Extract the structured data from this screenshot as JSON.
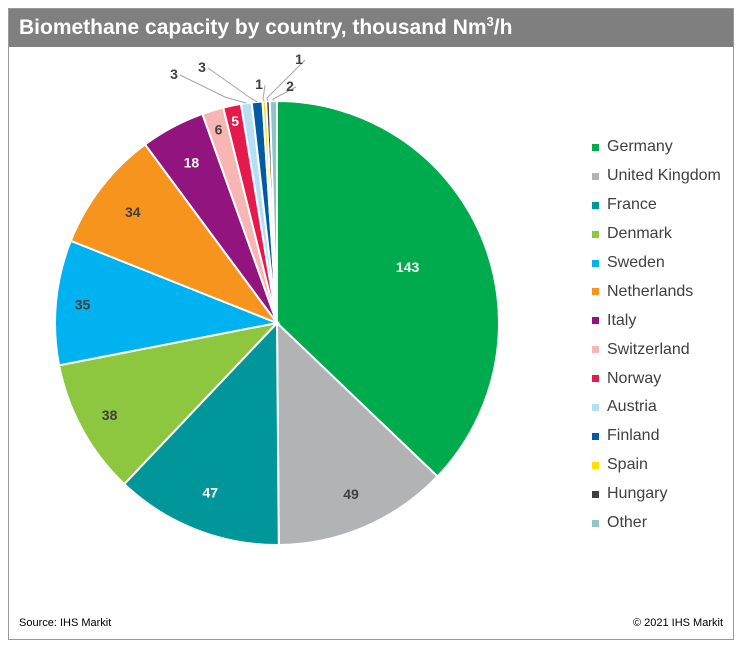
{
  "title": {
    "main": "Biomethane capacity by country, thousand Nm",
    "superscript": "3",
    "suffix": "/h"
  },
  "footer": {
    "source": "Source: IHS Markit",
    "copyright": "© 2021 IHS Markit"
  },
  "chart_data": {
    "type": "pie",
    "title": "Biomethane capacity by country, thousand Nm3/h",
    "start_angle": "12 o'clock",
    "direction": "clockwise",
    "legend_position": "right",
    "slices": [
      {
        "label": "Germany",
        "value": 143,
        "color": "#00ab4e"
      },
      {
        "label": "United Kingdom",
        "value": 49,
        "color": "#b2b3b5"
      },
      {
        "label": "France",
        "value": 47,
        "color": "#00969a"
      },
      {
        "label": "Denmark",
        "value": 38,
        "color": "#8dc63f"
      },
      {
        "label": "Sweden",
        "value": 35,
        "color": "#00b2ef"
      },
      {
        "label": "Netherlands",
        "value": 34,
        "color": "#f7941d"
      },
      {
        "label": "Italy",
        "value": 18,
        "color": "#91147f"
      },
      {
        "label": "Switzerland",
        "value": 6,
        "color": "#f7b5b3"
      },
      {
        "label": "Norway",
        "value": 5,
        "color": "#e5194b"
      },
      {
        "label": "Austria",
        "value": 3,
        "color": "#b5dff5"
      },
      {
        "label": "Finland",
        "value": 3,
        "color": "#005ba4"
      },
      {
        "label": "Spain",
        "value": 1,
        "color": "#ffe000"
      },
      {
        "label": "Hungary",
        "value": 1,
        "color": "#404040"
      },
      {
        "label": "Other",
        "value": 2,
        "color": "#8ec5c8"
      }
    ]
  }
}
